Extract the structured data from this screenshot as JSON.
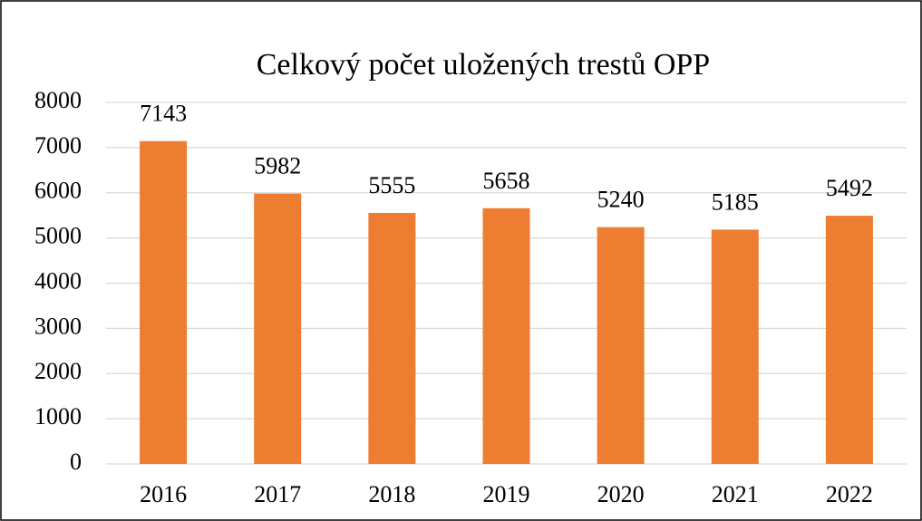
{
  "chart_data": {
    "type": "bar",
    "title": "Celkový počet uložených trestů OPP",
    "categories": [
      "2016",
      "2017",
      "2018",
      "2019",
      "2020",
      "2021",
      "2022"
    ],
    "values": [
      7143,
      5982,
      5555,
      5658,
      5240,
      5185,
      5492
    ],
    "color": "#ed7d31",
    "ylim": [
      0,
      8000
    ],
    "yticks": [
      0,
      1000,
      2000,
      3000,
      4000,
      5000,
      6000,
      7000,
      8000
    ],
    "grid": true
  }
}
